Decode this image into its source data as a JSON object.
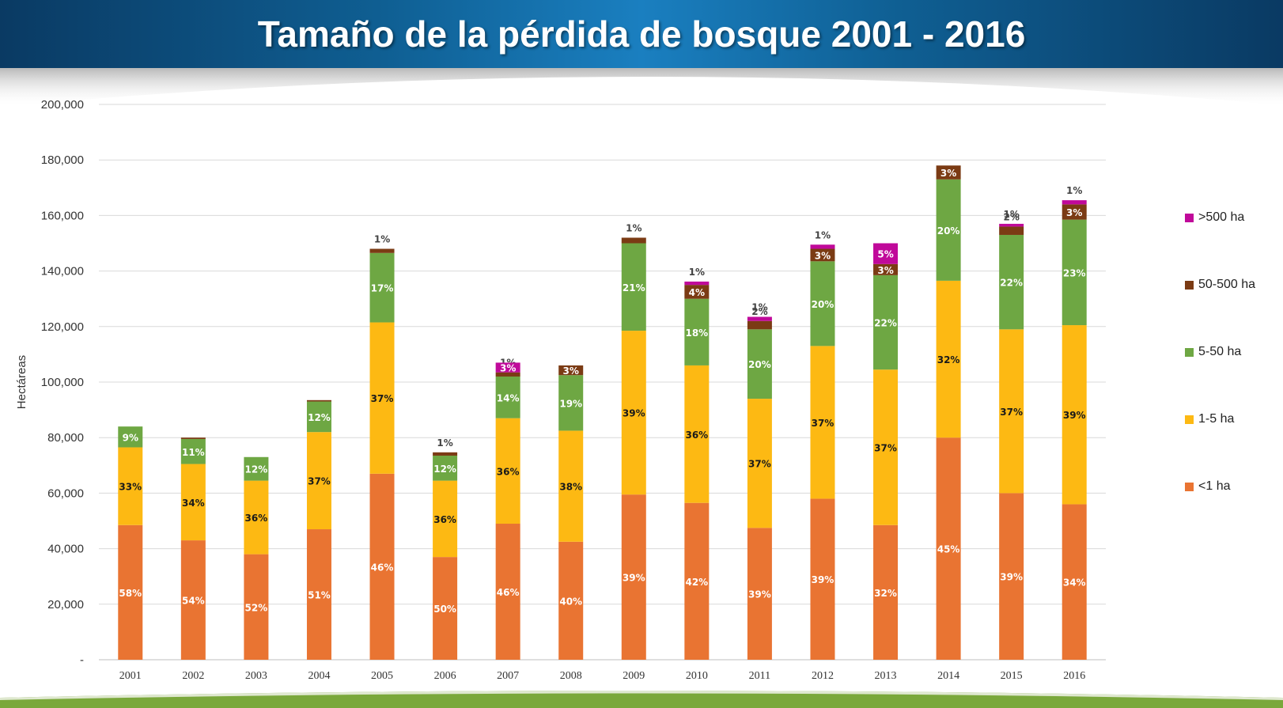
{
  "title": "Tamaño de la pérdida de bosque 2001 - 2016",
  "colors": {
    "lt1": "#e97432",
    "1to5": "#fdb913",
    "5to50": "#6ea743",
    "50to500": "#7b3b14",
    "gt500": "#c0099a",
    "header": "#0f5f93"
  },
  "chart_data": {
    "type": "bar",
    "stacked": true,
    "ylabel": "Hectáreas",
    "xlabel": "",
    "ylim": [
      0,
      200000
    ],
    "yticks": [
      "-",
      "20,000",
      "40,000",
      "60,000",
      "80,000",
      "100,000",
      "120,000",
      "140,000",
      "160,000",
      "180,000",
      "200,000"
    ],
    "grid": true,
    "legend_position": "right",
    "categories": [
      "2001",
      "2002",
      "2003",
      "2004",
      "2005",
      "2006",
      "2007",
      "2008",
      "2009",
      "2010",
      "2011",
      "2012",
      "2013",
      "2014",
      "2015",
      "2016"
    ],
    "series": [
      {
        "name": "<1 ha",
        "color_key": "lt1",
        "values": [
          48500,
          43000,
          38000,
          47000,
          67000,
          37000,
          49000,
          42500,
          59500,
          56500,
          47500,
          58000,
          48500,
          80000,
          60000,
          56000
        ],
        "labels": [
          "58%",
          "54%",
          "52%",
          "51%",
          "46%",
          "50%",
          "46%",
          "40%",
          "39%",
          "42%",
          "39%",
          "39%",
          "32%",
          "45%",
          "39%",
          "34%"
        ]
      },
      {
        "name": "1-5 ha",
        "color_key": "1to5",
        "values": [
          28000,
          27500,
          26500,
          35000,
          54500,
          27500,
          38000,
          40000,
          59000,
          49500,
          46500,
          55000,
          56000,
          56500,
          59000,
          64500
        ],
        "labels": [
          "33%",
          "34%",
          "36%",
          "37%",
          "37%",
          "36%",
          "36%",
          "38%",
          "39%",
          "36%",
          "37%",
          "37%",
          "37%",
          "32%",
          "37%",
          "39%"
        ]
      },
      {
        "name": "5-50 ha",
        "color_key": "5to50",
        "values": [
          7500,
          9000,
          8500,
          11000,
          25000,
          9000,
          15000,
          20000,
          31500,
          24000,
          25000,
          30500,
          34000,
          36500,
          34000,
          38000
        ],
        "labels": [
          "9%",
          "11%",
          "12%",
          "12%",
          "17%",
          "12%",
          "14%",
          "19%",
          "21%",
          "18%",
          "20%",
          "20%",
          "22%",
          "20%",
          "22%",
          "23%"
        ]
      },
      {
        "name": "50-500 ha",
        "color_key": "50to500",
        "values": [
          0,
          500,
          0,
          500,
          1500,
          1200,
          1500,
          3500,
          2000,
          5000,
          3000,
          4500,
          4000,
          5000,
          3000,
          5500
        ],
        "labels": [
          "",
          "",
          "",
          "",
          "1%",
          "1%",
          "1%",
          "3%",
          "1%",
          "4%",
          "2%",
          "3%",
          "3%",
          "3%",
          "2%",
          "3%"
        ]
      },
      {
        "name": ">500 ha",
        "color_key": "gt500",
        "values": [
          0,
          0,
          0,
          0,
          0,
          0,
          3500,
          0,
          0,
          1200,
          1500,
          1500,
          7500,
          0,
          1000,
          1500
        ],
        "labels": [
          "",
          "",
          "",
          "",
          "",
          "",
          "3%",
          "",
          "",
          "1%",
          "1%",
          "1%",
          "5%",
          "",
          "1%",
          "1%"
        ]
      }
    ]
  }
}
